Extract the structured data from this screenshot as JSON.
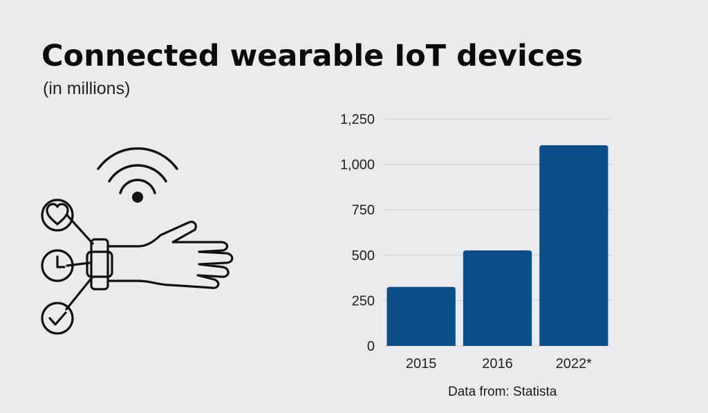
{
  "title": "Connected wearable IoT devices",
  "subtitle": "(in millions)",
  "source": "Data from: Statista",
  "icons": [
    "wifi-signal-icon",
    "heart-icon",
    "clock-icon",
    "checkmark-icon",
    "smartwatch-wrist-icon"
  ],
  "chart_data": {
    "type": "bar",
    "categories": [
      "2015",
      "2016",
      "2022*"
    ],
    "values": [
      325,
      526,
      1105
    ],
    "ylim": [
      0,
      1250
    ],
    "yticks": [
      0,
      250,
      500,
      750,
      1000,
      1250
    ],
    "ytick_labels": [
      "0",
      "250",
      "500",
      "750",
      "1,000",
      "1,250"
    ],
    "grid": true,
    "bar_color": "#0b4f8a",
    "xlabel": "",
    "ylabel": ""
  }
}
